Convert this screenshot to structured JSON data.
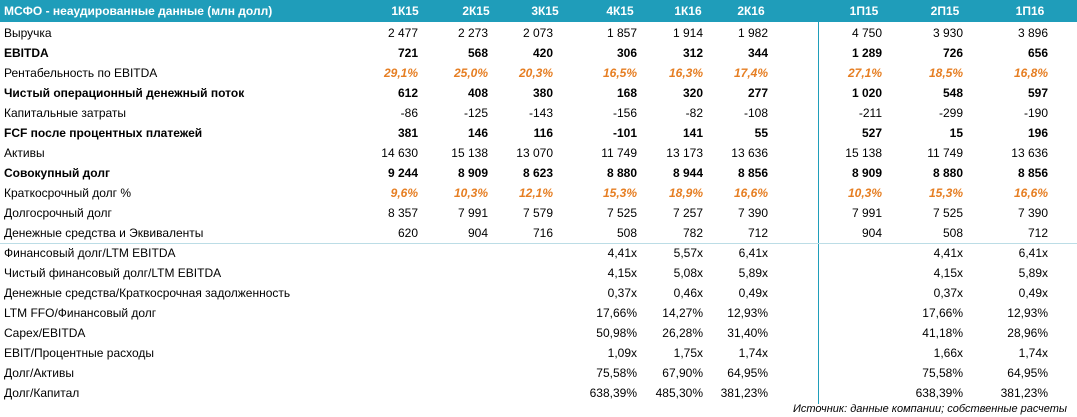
{
  "table": {
    "title": "МСФО - неаудированные данные (млн долл)",
    "columns": [
      "1К15",
      "2К15",
      "3К15",
      "4К15",
      "1К16",
      "2К16",
      "1П15",
      "2П15",
      "1П16"
    ],
    "rows": [
      {
        "label": "Выручка",
        "cells": [
          "2 477",
          "2 273",
          "2 073",
          "1 857",
          "1 914",
          "1 982",
          "4 750",
          "3 930",
          "3 896"
        ]
      },
      {
        "label": "EBITDA",
        "style": "bold",
        "cells": [
          "721",
          "568",
          "420",
          "306",
          "312",
          "344",
          "1 289",
          "726",
          "656"
        ]
      },
      {
        "label": "Рентабельность по EBITDA",
        "style": "rate",
        "cells": [
          "29,1%",
          "25,0%",
          "20,3%",
          "16,5%",
          "16,3%",
          "17,4%",
          "27,1%",
          "18,5%",
          "16,8%"
        ]
      },
      {
        "label": "Чистый операционный денежный поток",
        "style": "bold",
        "cells": [
          "612",
          "408",
          "380",
          "168",
          "320",
          "277",
          "1 020",
          "548",
          "597"
        ]
      },
      {
        "label": "Капитальные затраты",
        "cells": [
          "-86",
          "-125",
          "-143",
          "-156",
          "-82",
          "-108",
          "-211",
          "-299",
          "-190"
        ]
      },
      {
        "label": "FCF после процентных платежей",
        "style": "bold",
        "cells": [
          "381",
          "146",
          "116",
          "-101",
          "141",
          "55",
          "527",
          "15",
          "196"
        ]
      },
      {
        "label": "Активы",
        "cells": [
          "14 630",
          "15 138",
          "13 070",
          "11 749",
          "13 173",
          "13 636",
          "15 138",
          "11 749",
          "13 636"
        ]
      },
      {
        "label": "Совокупный долг",
        "style": "bold",
        "cells": [
          "9 244",
          "8 909",
          "8 623",
          "8 880",
          "8 944",
          "8 856",
          "8 909",
          "8 880",
          "8 856"
        ]
      },
      {
        "label": "Краткосрочный долг %",
        "style": "rate",
        "cells": [
          "9,6%",
          "10,3%",
          "12,1%",
          "15,3%",
          "18,9%",
          "16,6%",
          "10,3%",
          "15,3%",
          "16,6%"
        ]
      },
      {
        "label": "Долгосрочный долг",
        "cells": [
          "8 357",
          "7 991",
          "7 579",
          "7 525",
          "7 257",
          "7 390",
          "7 991",
          "7 525",
          "7 390"
        ]
      },
      {
        "label": "Денежные средства и Эквиваленты",
        "cells": [
          "620",
          "904",
          "716",
          "508",
          "782",
          "712",
          "904",
          "508",
          "712"
        ]
      },
      {
        "label": "Финансовый долг/LTM EBITDA",
        "cells": [
          null,
          null,
          null,
          "4,41x",
          "5,57x",
          "6,41x",
          null,
          "4,41x",
          "6,41x"
        ]
      },
      {
        "label": "Чистый финансовый долг/LTM EBITDA",
        "cells": [
          null,
          null,
          null,
          "4,15x",
          "5,08x",
          "5,89x",
          null,
          "4,15x",
          "5,89x"
        ]
      },
      {
        "label": "Денежные средства/Краткосрочная задолженность",
        "cells": [
          null,
          null,
          null,
          "0,37x",
          "0,46x",
          "0,49x",
          null,
          "0,37x",
          "0,49x"
        ]
      },
      {
        "label": "LTM FFO/Финансовый долг",
        "cells": [
          null,
          null,
          null,
          "17,66%",
          "14,27%",
          "12,93%",
          null,
          "17,66%",
          "12,93%"
        ]
      },
      {
        "label": "Capex/EBITDA",
        "cells": [
          null,
          null,
          null,
          "50,98%",
          "26,28%",
          "31,40%",
          null,
          "41,18%",
          "28,96%"
        ]
      },
      {
        "label": "EBIT/Процентные расходы",
        "cells": [
          null,
          null,
          null,
          "1,09x",
          "1,75x",
          "1,74x",
          null,
          "1,66x",
          "1,74x"
        ]
      },
      {
        "label": "Долг/Активы",
        "cells": [
          null,
          null,
          null,
          "75,58%",
          "67,90%",
          "64,95%",
          null,
          "75,58%",
          "64,95%"
        ]
      },
      {
        "label": "Долг/Капитал",
        "cells": [
          null,
          null,
          null,
          "638,39%",
          "485,30%",
          "381,23%",
          null,
          "638,39%",
          "381,23%"
        ]
      }
    ],
    "source": "Источник: данные компании; собственные расчеты"
  }
}
